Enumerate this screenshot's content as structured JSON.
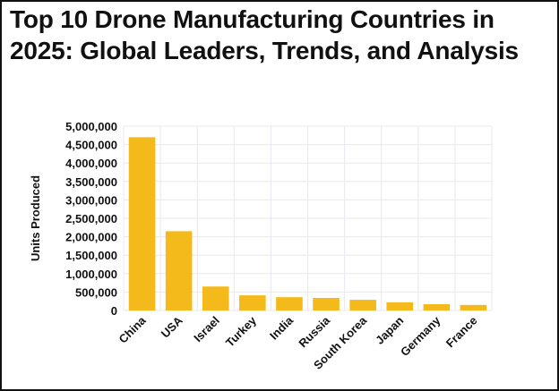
{
  "chart_data": {
    "type": "bar",
    "title": "Top 10 Drone Manufacturing Countries in 2025: Global Leaders, Trends, and Analysis",
    "xlabel": "",
    "ylabel": "Units Produced",
    "categories": [
      "China",
      "USA",
      "Israel",
      "Turkey",
      "India",
      "Russia",
      "South Korea",
      "Japan",
      "Germany",
      "France"
    ],
    "values": [
      4700000,
      2150000,
      650000,
      410000,
      360000,
      340000,
      290000,
      220000,
      170000,
      150000
    ],
    "ylim": [
      0,
      5000000
    ],
    "yticks": [
      0,
      500000,
      1000000,
      1500000,
      2000000,
      2500000,
      3000000,
      3500000,
      4000000,
      4500000,
      5000000
    ],
    "ytick_labels": [
      "0",
      "500,000",
      "1,000,000",
      "1,500,000",
      "2,000,000",
      "2,500,000",
      "3,000,000",
      "3,500,000",
      "4,000,000",
      "4,500,000",
      "5,000,000"
    ],
    "grid": true,
    "bar_color": "#F4B91A",
    "grid_color": "#E8E8EE"
  }
}
